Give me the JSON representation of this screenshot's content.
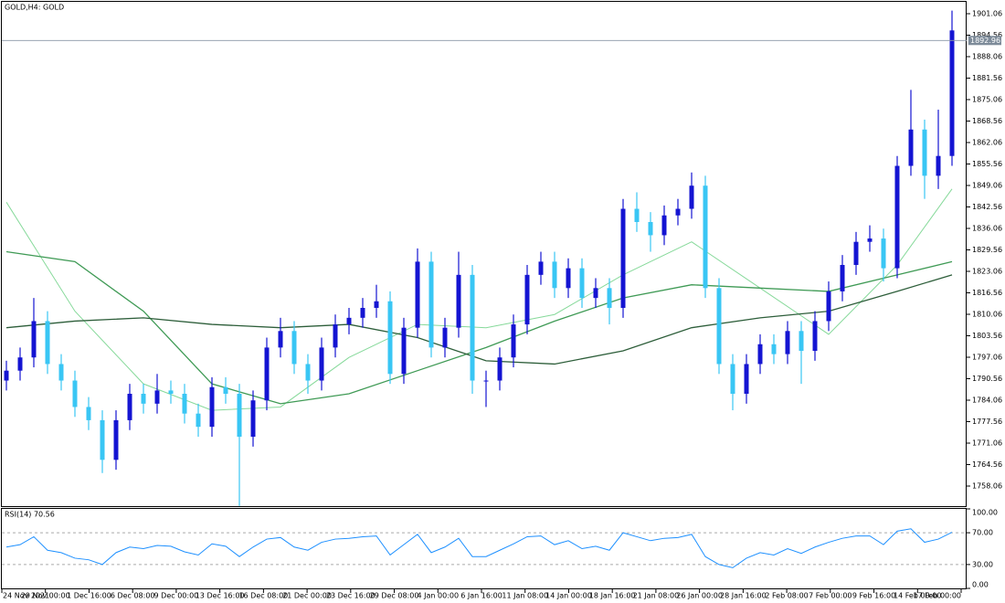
{
  "chart_data": [
    {
      "type": "candlestick",
      "title": "GOLD,H4:  GOLD",
      "ylim": [
        1751.7,
        1904.66
      ],
      "yticks": [
        1901.06,
        1894.56,
        1888.06,
        1881.56,
        1875.06,
        1868.56,
        1862.06,
        1855.56,
        1849.06,
        1842.56,
        1836.06,
        1829.56,
        1823.06,
        1816.56,
        1810.06,
        1803.56,
        1797.06,
        1790.56,
        1784.06,
        1777.56,
        1771.06,
        1764.56,
        1758.06
      ],
      "current_price": 1892.96,
      "up_color": "#1414d2",
      "down_color": "#39c6f4",
      "open": [
        1790,
        1793,
        1797,
        1808,
        1795,
        1790,
        1782,
        1778,
        1766,
        1778,
        1786,
        1783,
        1787,
        1786,
        1780,
        1776,
        1788,
        1786,
        1773,
        1784,
        1800,
        1805,
        1795,
        1790,
        1800,
        1807,
        1809,
        1812,
        1814,
        1792,
        1806,
        1826,
        1800,
        1806,
        1822,
        1790,
        1790,
        1797,
        1807,
        1822,
        1826,
        1818,
        1824,
        1815,
        1818,
        1812,
        1842,
        1838,
        1834,
        1840,
        1842,
        1849,
        1818,
        1795,
        1786,
        1795,
        1801,
        1798,
        1805,
        1799,
        1808,
        1817,
        1825,
        1832,
        1833,
        1824,
        1855,
        1866,
        1852,
        1858
      ],
      "high": [
        1796,
        1800,
        1815,
        1811,
        1798,
        1793,
        1785,
        1781,
        1781,
        1789,
        1789,
        1792,
        1790,
        1789,
        1783,
        1791,
        1791,
        1789,
        1787,
        1803,
        1809,
        1808,
        1798,
        1803,
        1810,
        1812,
        1815,
        1819,
        1817,
        1809,
        1830,
        1829,
        1809,
        1829,
        1825,
        1793,
        1800,
        1810,
        1825,
        1829,
        1829,
        1827,
        1827,
        1821,
        1821,
        1845,
        1847,
        1841,
        1843,
        1845,
        1853,
        1852,
        1821,
        1798,
        1798,
        1804,
        1804,
        1808,
        1808,
        1811,
        1820,
        1828,
        1835,
        1837,
        1836,
        1858,
        1878,
        1869,
        1872,
        1902
      ],
      "low": [
        1787,
        1790,
        1794,
        1792,
        1787,
        1779,
        1775,
        1762,
        1763,
        1775,
        1780,
        1780,
        1783,
        1777,
        1773,
        1773,
        1783,
        1752,
        1770,
        1781,
        1797,
        1792,
        1786,
        1787,
        1797,
        1804,
        1806,
        1809,
        1789,
        1789,
        1803,
        1797,
        1797,
        1803,
        1786,
        1782,
        1787,
        1794,
        1804,
        1819,
        1815,
        1815,
        1812,
        1812,
        1807,
        1809,
        1835,
        1829,
        1831,
        1837,
        1839,
        1815,
        1792,
        1781,
        1783,
        1792,
        1795,
        1795,
        1789,
        1796,
        1805,
        1814,
        1822,
        1829,
        1820,
        1821,
        1852,
        1845,
        1848,
        1855
      ],
      "close": [
        1793,
        1797,
        1808,
        1795,
        1790,
        1782,
        1778,
        1766,
        1778,
        1786,
        1783,
        1787,
        1786,
        1780,
        1776,
        1788,
        1786,
        1773,
        1784,
        1800,
        1805,
        1795,
        1790,
        1800,
        1807,
        1809,
        1812,
        1814,
        1792,
        1806,
        1826,
        1800,
        1806,
        1822,
        1790,
        1790,
        1797,
        1807,
        1822,
        1826,
        1818,
        1824,
        1815,
        1818,
        1812,
        1842,
        1838,
        1834,
        1840,
        1842,
        1849,
        1818,
        1795,
        1786,
        1795,
        1801,
        1798,
        1805,
        1799,
        1808,
        1817,
        1825,
        1832,
        1833,
        1824,
        1855,
        1866,
        1852,
        1858,
        1896
      ],
      "series": [
        {
          "color": "#86d99a",
          "x": [
            0,
            5,
            10,
            15,
            20,
            25,
            30,
            35,
            40,
            45,
            50,
            55,
            60,
            65,
            69
          ],
          "values": [
            1844,
            1811,
            1789,
            1781,
            1782,
            1797,
            1807,
            1806,
            1810,
            1822,
            1832,
            1818,
            1804,
            1825,
            1848
          ]
        },
        {
          "color": "#3f9a55",
          "x": [
            0,
            5,
            10,
            15,
            20,
            25,
            30,
            35,
            40,
            45,
            50,
            55,
            60,
            65,
            69
          ],
          "values": [
            1829,
            1826,
            1811,
            1789,
            1783,
            1786,
            1793,
            1800,
            1808,
            1815,
            1819,
            1818,
            1817,
            1822,
            1826
          ]
        },
        {
          "color": "#2d5e3a",
          "x": [
            0,
            5,
            10,
            15,
            20,
            25,
            30,
            35,
            40,
            45,
            50,
            55,
            60,
            65,
            69
          ],
          "values": [
            1806,
            1808,
            1809,
            1807,
            1806,
            1807,
            1803,
            1796,
            1795,
            1799,
            1806,
            1809,
            1811,
            1817,
            1822
          ]
        }
      ],
      "x_labels": [
        "24 Nov 2021",
        "29 Nov 00:00",
        "1 Dec 16:00",
        "6 Dec 08:00",
        "9 Dec 00:00",
        "13 Dec 16:00",
        "16 Dec 08:00",
        "21 Dec 00:00",
        "23 Dec 16:00",
        "29 Dec 08:00",
        "4 Jan 00:00",
        "6 Jan 16:00",
        "11 Jan 08:00",
        "14 Jan 00:00",
        "18 Jan 16:00",
        "21 Jan 08:00",
        "26 Jan 00:00",
        "28 Jan 16:00",
        "2 Feb 08:00",
        "7 Feb 00:00",
        "9 Feb 16:00",
        "14 Feb 00:00",
        "17 Feb 00:00"
      ]
    },
    {
      "type": "line",
      "title": "RSI(14) 70.56",
      "color": "#1e90ff",
      "ylim": [
        0,
        100
      ],
      "yticks": [
        {
          "value": 100,
          "label": "100.00"
        },
        {
          "value": 70,
          "label": "70.00"
        },
        {
          "value": 30,
          "label": "30.00"
        },
        {
          "value": 0,
          "label": "0.00"
        }
      ],
      "levels": [
        70,
        30
      ],
      "values": [
        52,
        55,
        65,
        48,
        45,
        38,
        36,
        30,
        45,
        52,
        50,
        54,
        53,
        46,
        42,
        56,
        53,
        40,
        52,
        62,
        64,
        52,
        48,
        58,
        62,
        63,
        65,
        66,
        42,
        55,
        68,
        45,
        52,
        63,
        40,
        40,
        48,
        56,
        65,
        66,
        55,
        60,
        50,
        53,
        48,
        70,
        65,
        60,
        63,
        64,
        68,
        40,
        30,
        26,
        38,
        45,
        42,
        50,
        44,
        52,
        58,
        63,
        66,
        66,
        55,
        72,
        75,
        58,
        62,
        70.56
      ]
    }
  ]
}
